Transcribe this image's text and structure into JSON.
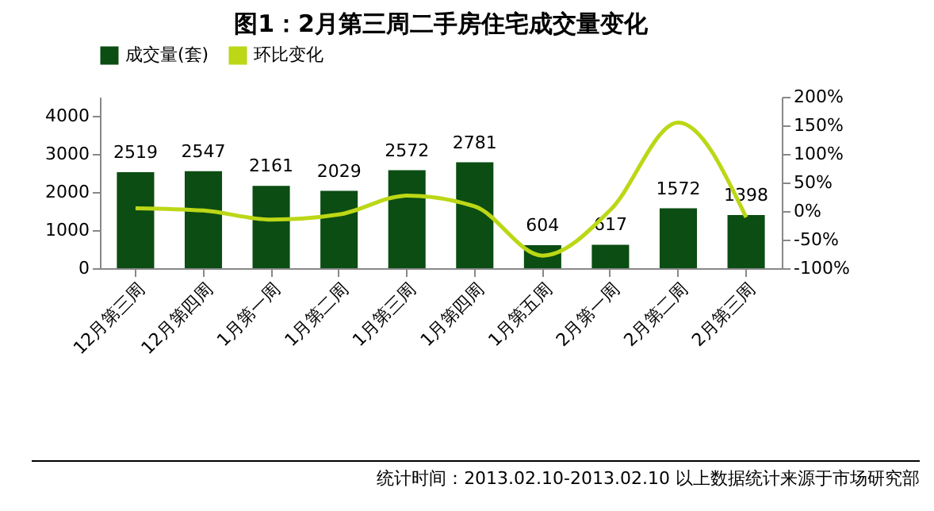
{
  "chart_data": {
    "type": "bar",
    "title": "图1：2月第三周二手房住宅成交量变化",
    "categories": [
      "12月第三周",
      "12月第四周",
      "1月第一周",
      "1月第二周",
      "1月第三周",
      "1月第四周",
      "1月第五周",
      "2月第一周",
      "2月第二周",
      "2月第三周"
    ],
    "series": [
      {
        "name": "成交量(套)",
        "color": "#0b4d12",
        "values": [
          2519,
          2547,
          2161,
          2029,
          2572,
          2781,
          604,
          617,
          1572,
          1398
        ],
        "value_labels": [
          "2519",
          "2547",
          "2161",
          "2029",
          "2572",
          "2781",
          "604",
          "617",
          "1572",
          "1398"
        ]
      },
      {
        "name": "环比变化",
        "type": "line",
        "axis": "y2",
        "color": "#bcd716",
        "values": [
          5,
          1,
          -15,
          -6,
          27,
          8,
          -78,
          2,
          155,
          -11
        ]
      }
    ],
    "ylim": [
      0,
      4500
    ],
    "yticks": [
      0,
      1000,
      2000,
      3000,
      4000
    ],
    "y2lim": [
      -100,
      200
    ],
    "y2ticks": [
      {
        "value": -100,
        "label": "-100%"
      },
      {
        "value": -50,
        "label": "-50%"
      },
      {
        "value": 0,
        "label": "0%"
      },
      {
        "value": 50,
        "label": "50%"
      },
      {
        "value": 100,
        "label": "100%"
      },
      {
        "value": 150,
        "label": "150%"
      },
      {
        "value": 200,
        "label": "200%"
      }
    ],
    "legend": "top",
    "grid": false,
    "annotations": [
      "统计时间：2013.02.10-2013.02.10 以上数据统计来源于市场研究部"
    ]
  }
}
